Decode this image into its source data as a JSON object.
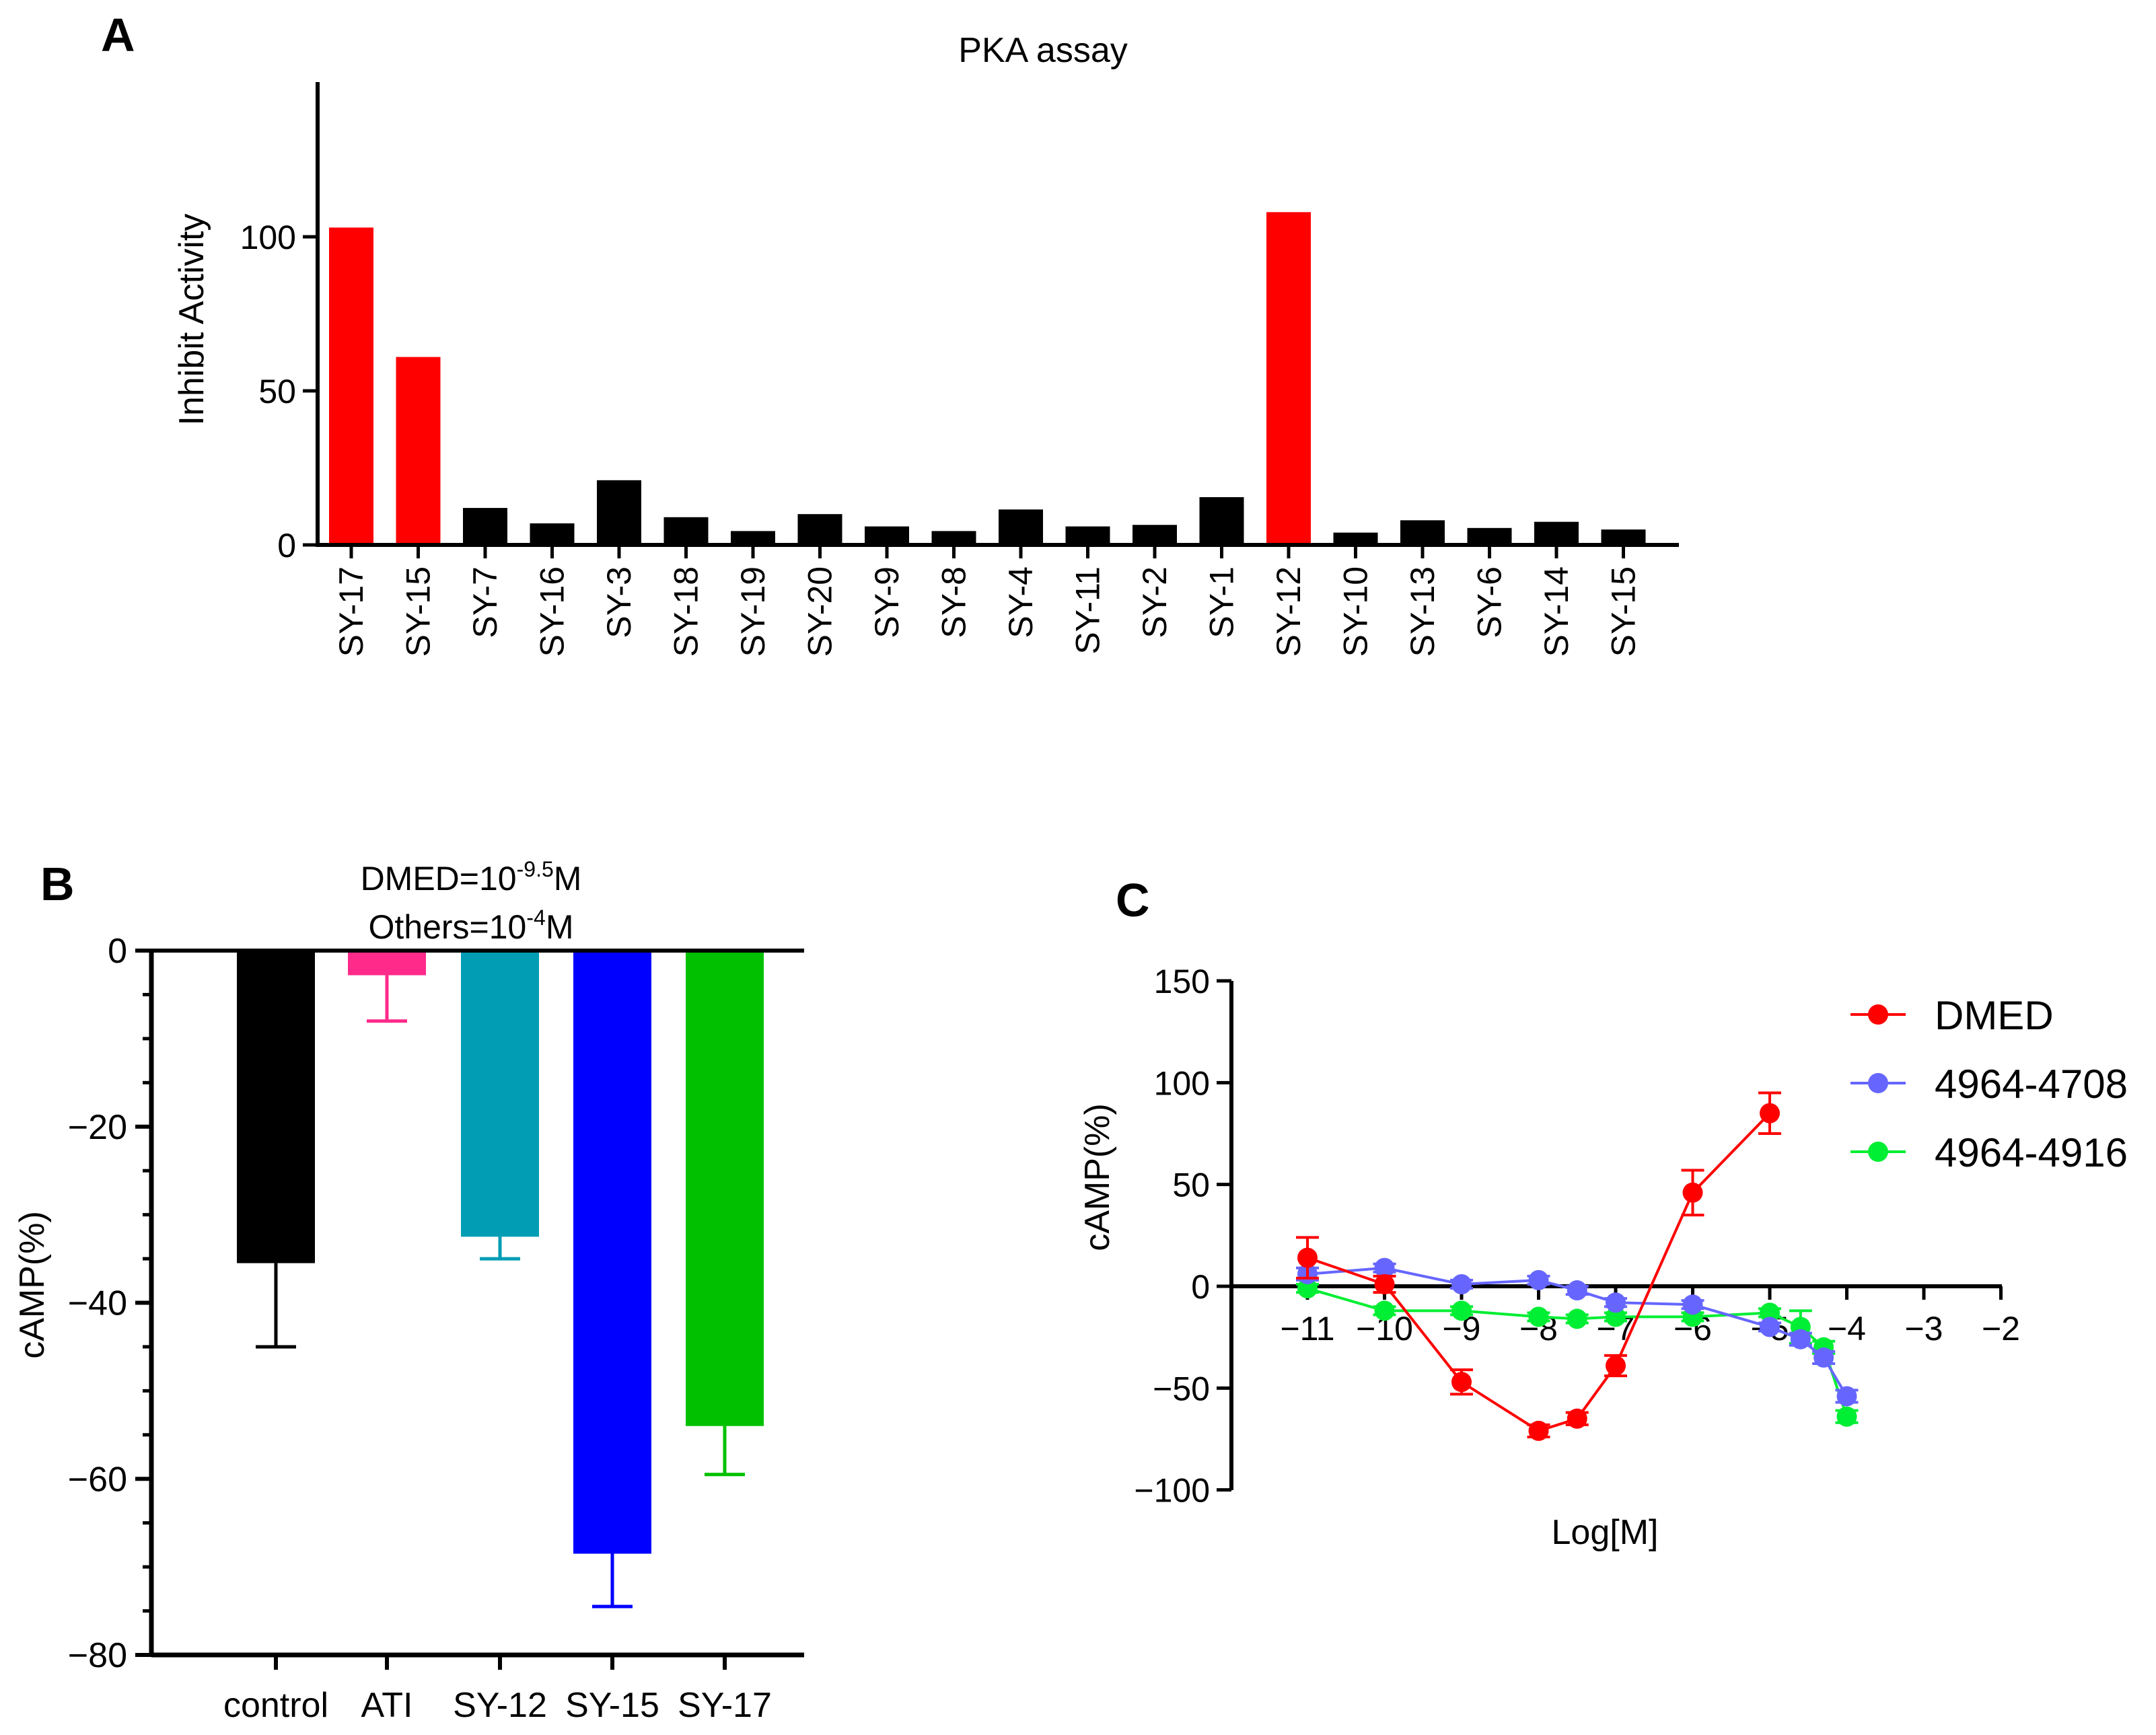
{
  "panels": {
    "a": {
      "letter": "A"
    },
    "b": {
      "letter": "B",
      "annotation_line1": "DMED=10",
      "annotation_exp1": "-9.5",
      "annotation_unit1": "M",
      "annotation_line2": "Others=10",
      "annotation_exp2": "-4",
      "annotation_unit2": "M"
    },
    "c": {
      "letter": "C"
    }
  },
  "colors": {
    "red": "#ff0000",
    "black": "#000000",
    "pink": "#ff2a8a",
    "teal": "#009db5",
    "blue": "#0000ff",
    "green": "#00c000",
    "periwinkle": "#6666ff",
    "lime": "#00ee33"
  },
  "chart_data": [
    {
      "id": "A",
      "type": "bar",
      "title": "PKA assay",
      "xlabel": "",
      "ylabel": "Inhibit Activity",
      "ylim": [
        0,
        150
      ],
      "yticks": [
        0,
        50,
        100
      ],
      "categories": [
        "SY-17",
        "SY-15",
        "SY-7",
        "SY-16",
        "SY-3",
        "SY-18",
        "SY-19",
        "SY-20",
        "SY-9",
        "SY-8",
        "SY-4",
        "SY-11",
        "SY-2",
        "SY-1",
        "SY-12",
        "SY-10",
        "SY-13",
        "SY-6",
        "SY-14",
        "SY-15"
      ],
      "values": [
        103,
        61,
        12,
        7,
        21,
        9,
        4.5,
        10,
        6,
        4.5,
        11.5,
        6,
        6.5,
        15.5,
        108,
        4,
        8,
        5.5,
        7.5,
        5
      ],
      "highlight": [
        "red",
        "red",
        "black",
        "black",
        "black",
        "black",
        "black",
        "black",
        "black",
        "black",
        "black",
        "black",
        "black",
        "black",
        "red",
        "black",
        "black",
        "black",
        "black",
        "black"
      ]
    },
    {
      "id": "B",
      "type": "bar",
      "title": "",
      "xlabel": "",
      "ylabel": "cAMP(%)",
      "ylim": [
        -80,
        0
      ],
      "yticks": [
        0,
        -20,
        -40,
        -60,
        -80
      ],
      "categories": [
        "control",
        "ATI",
        "SY-12",
        "SY-15",
        "SY-17"
      ],
      "values": [
        -35.5,
        -2.8,
        -32.5,
        -68.5,
        -54
      ],
      "errors": [
        9.5,
        5.2,
        2.5,
        6,
        5.5
      ],
      "bar_colors": [
        "black",
        "pink",
        "teal",
        "blue",
        "green"
      ]
    },
    {
      "id": "C",
      "type": "line",
      "title": "",
      "xlabel": "Log[M]",
      "ylabel": "cAMP(%)",
      "xlim": [
        -11.5,
        -2
      ],
      "ylim": [
        -100,
        150
      ],
      "xticks": [
        -11,
        -10,
        -9,
        -8,
        -7,
        -6,
        -5,
        -4,
        -3,
        -2
      ],
      "xtick_labels": [
        "−11",
        "−10",
        "−9",
        "−8",
        "−7",
        "−6",
        "−5",
        "−4",
        "−3",
        "−2"
      ],
      "yticks": [
        150,
        100,
        50,
        0,
        -50,
        -100
      ],
      "ytick_labels": [
        "150",
        "100",
        "50",
        "0",
        "−50",
        "−100"
      ],
      "legend_position": "top-right",
      "series": [
        {
          "name": "DMED",
          "color": "red",
          "x": [
            -11,
            -10,
            -9,
            -8,
            -7.5,
            -7,
            -6,
            -5
          ],
          "y": [
            14,
            1,
            -47,
            -71,
            -65,
            -39,
            46,
            85
          ],
          "err": [
            10,
            4,
            6,
            3,
            3,
            5,
            11,
            10
          ]
        },
        {
          "name": "4964-4708",
          "color": "periwinkle",
          "x": [
            -11,
            -10,
            -9,
            -8,
            -7.5,
            -7,
            -6,
            -5,
            -4.6,
            -4.3,
            -4
          ],
          "y": [
            6,
            9,
            1,
            3,
            -2,
            -8,
            -9,
            -20,
            -26,
            -35,
            -54
          ],
          "err": [
            3,
            2,
            2,
            2,
            2,
            2,
            2,
            2,
            3,
            3,
            3
          ]
        },
        {
          "name": "4964-4916",
          "color": "lime",
          "x": [
            -11,
            -10,
            -9,
            -8,
            -7.5,
            -7,
            -6,
            -5,
            -4.6,
            -4.3,
            -4
          ],
          "y": [
            -1,
            -12,
            -12,
            -15,
            -16,
            -15,
            -15,
            -13,
            -20,
            -30,
            -64
          ],
          "err": [
            2,
            2,
            2,
            2,
            2,
            2,
            2,
            2,
            8,
            3,
            3
          ]
        }
      ]
    }
  ]
}
